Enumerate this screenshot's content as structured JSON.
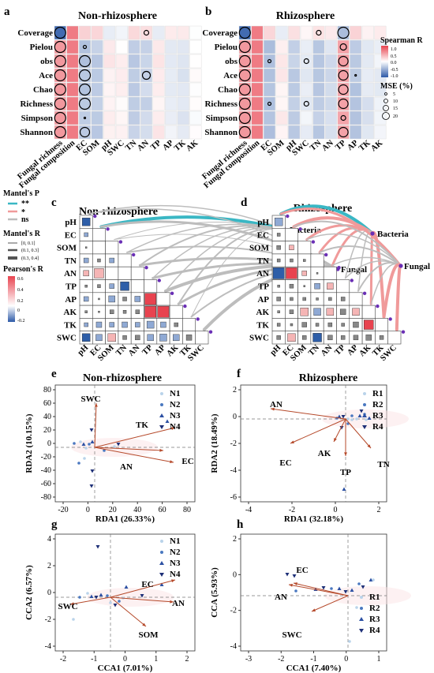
{
  "panels": {
    "a": {
      "letter": "a",
      "title": "Non-rhizosphere"
    },
    "b": {
      "letter": "b",
      "title": "Rhizosphere"
    },
    "c": {
      "letter": "c",
      "title": "Non-rhizosphere"
    },
    "d": {
      "letter": "d",
      "title": "Rhizosphere"
    },
    "e": {
      "letter": "e",
      "title": "Non-rhizosphere"
    },
    "f": {
      "letter": "f",
      "title": "Rhizosphere"
    },
    "g": {
      "letter": "g"
    },
    "h": {
      "letter": "h"
    }
  },
  "heatmap": {
    "rows": [
      "Coverage",
      "Pielou",
      "obs",
      "Ace",
      "Chao",
      "Richness",
      "Simpson",
      "Shannon"
    ],
    "cols": [
      "Fungal richness",
      "Fungal composition",
      "EC",
      "SOM",
      "pH",
      "SWC",
      "TN",
      "AN",
      "TP",
      "AP",
      "TK",
      "AK"
    ],
    "legend": {
      "title": "Spearman R",
      "ticks": [
        "1.0",
        "0.5",
        "0.0",
        "-0.5",
        "-1.0"
      ],
      "mse_title": "MSE (%)",
      "mse_ticks": [
        "5",
        "10",
        "15",
        "20"
      ],
      "colors": {
        "pos": "#e8434f",
        "neg": "#2d5aa8"
      }
    }
  },
  "mantel": {
    "vars": [
      "pH",
      "EC",
      "SOM",
      "TN",
      "AN",
      "TP",
      "AP",
      "AK",
      "TK",
      "SWC"
    ],
    "targets": [
      "Bacteria",
      "Fungal"
    ],
    "legend": {
      "p_title": "Mantel's P",
      "p_items": [
        "**",
        "*",
        "ns"
      ],
      "p_colors": [
        "#3ab7c4",
        "#f09a9a",
        "#bdbdbd"
      ],
      "r_title": "Mantel's R",
      "r_items": [
        "[0, 0.1]",
        "(0.1, 0.3]",
        "(0.3, 0.4]"
      ],
      "pearson_title": "Pearson's R",
      "pearson_ticks": [
        "0.6",
        "0.4",
        "0.2",
        "0",
        "-0.2"
      ]
    }
  },
  "ordination": {
    "e": {
      "xlabel": "RDA1 (26.33%)",
      "ylabel": "RDA2 (10.15%)",
      "xticks": [
        "-20",
        "0",
        "20",
        "40",
        "60",
        "80"
      ],
      "yticks": [
        "80",
        "60",
        "40",
        "20",
        "0",
        "-20",
        "-40",
        "-60",
        "-80"
      ],
      "arrows": [
        "SWC",
        "TK",
        "AN",
        "EC"
      ],
      "legend": [
        "N1",
        "N2",
        "N3",
        "N4"
      ]
    },
    "f": {
      "xlabel": "RDA1 (32.18%)",
      "ylabel": "RDA2 (18.49%)",
      "xticks": [
        "-4",
        "-2",
        "0",
        "2"
      ],
      "yticks": [
        "2",
        "0",
        "-2",
        "-4",
        "-6"
      ],
      "arrows": [
        "AN",
        "EC",
        "AK",
        "TP",
        "TN"
      ],
      "legend": [
        "R1",
        "R2",
        "R3",
        "R4"
      ]
    },
    "g": {
      "xlabel": "CCA1 (7.01%)",
      "ylabel": "CCA2 (6.57%)",
      "xticks": [
        "-2",
        "-1",
        "0",
        "1",
        "2"
      ],
      "yticks": [
        "4",
        "2",
        "0",
        "-2",
        "-4"
      ],
      "arrows": [
        "SWC",
        "EC",
        "AN",
        "SOM"
      ],
      "legend": [
        "N1",
        "N2",
        "N3",
        "N4"
      ]
    },
    "h": {
      "xlabel": "CCA1 (7.40%)",
      "ylabel": "CCA (5.93%)",
      "xticks": [
        "-3",
        "-2",
        "-1",
        "0",
        "1"
      ],
      "yticks": [
        "2",
        "0",
        "-2",
        "-4"
      ],
      "arrows": [
        "EC",
        "AN",
        "SWC"
      ],
      "legend": [
        "R1",
        "R2",
        "R3",
        "R4"
      ]
    }
  }
}
